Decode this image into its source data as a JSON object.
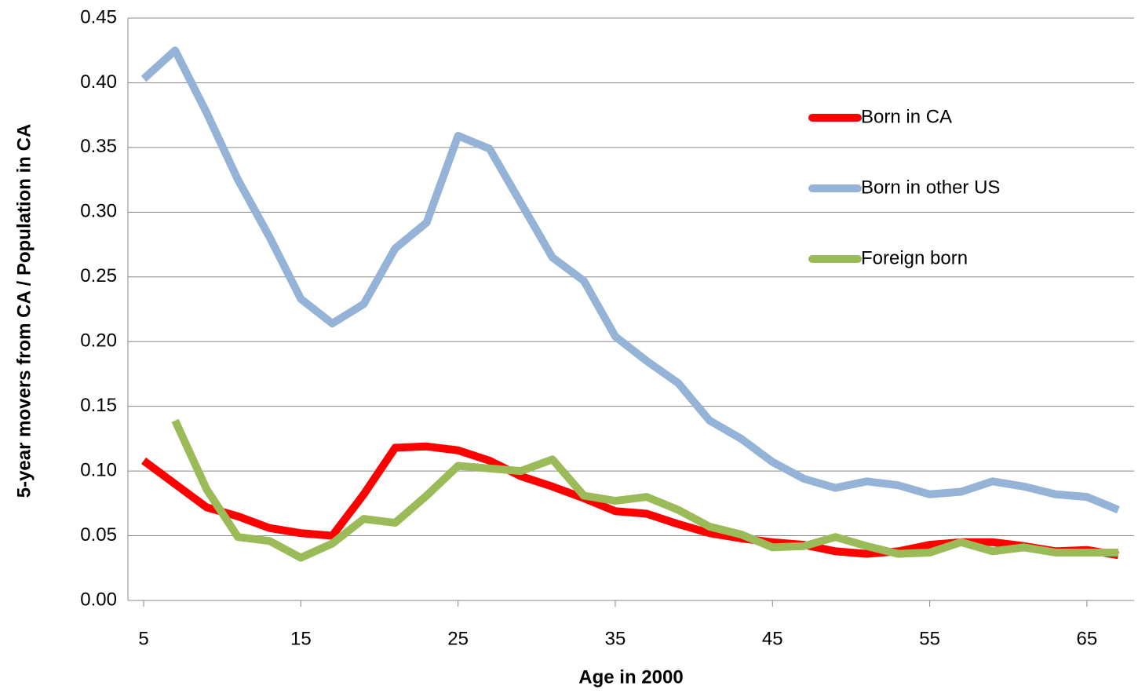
{
  "chart_data": {
    "type": "line",
    "x_label": "Age in 2000",
    "y_label": "5-year movers from CA / Population in CA",
    "x": [
      5,
      7,
      9,
      11,
      13,
      15,
      17,
      19,
      21,
      23,
      25,
      27,
      29,
      31,
      33,
      35,
      37,
      39,
      41,
      43,
      45,
      47,
      49,
      51,
      53,
      55,
      57,
      59,
      61,
      63,
      65,
      67
    ],
    "xlim": [
      4,
      68
    ],
    "xticks": [
      5,
      15,
      25,
      35,
      45,
      55,
      65
    ],
    "ylim": [
      0,
      0.45
    ],
    "yticks": [
      {
        "value": 0,
        "label": "0.00"
      },
      {
        "value": 0.05,
        "label": "0.05"
      },
      {
        "value": 0.1,
        "label": "0.10"
      },
      {
        "value": 0.15,
        "label": "0.15"
      },
      {
        "value": 0.2,
        "label": "0.20"
      },
      {
        "value": 0.25,
        "label": "0.25"
      },
      {
        "value": 0.3,
        "label": "0.30"
      },
      {
        "value": 0.35,
        "label": "0.35"
      },
      {
        "value": 0.4,
        "label": "0.40"
      },
      {
        "value": 0.45,
        "label": "0.45"
      }
    ],
    "grid": true,
    "legend": "right",
    "series": [
      {
        "name": "Born in CA",
        "color": "#ff0000",
        "values": [
          0.108,
          0.09,
          0.072,
          0.065,
          0.056,
          0.052,
          0.05,
          0.082,
          0.118,
          0.119,
          0.116,
          0.108,
          0.096,
          0.088,
          0.079,
          0.069,
          0.067,
          0.059,
          0.052,
          0.048,
          0.045,
          0.043,
          0.038,
          0.036,
          0.038,
          0.043,
          0.045,
          0.045,
          0.042,
          0.038,
          0.039,
          0.035
        ]
      },
      {
        "name": "Born in other US",
        "color": "#95b3d7",
        "values": [
          0.403,
          0.425,
          0.377,
          0.325,
          0.281,
          0.233,
          0.214,
          0.229,
          0.272,
          0.292,
          0.359,
          0.349,
          0.307,
          0.265,
          0.247,
          0.204,
          0.185,
          0.168,
          0.139,
          0.125,
          0.107,
          0.094,
          0.087,
          0.092,
          0.089,
          0.082,
          0.084,
          0.092,
          0.088,
          0.082,
          0.08,
          0.07
        ]
      },
      {
        "name": "Foreign born",
        "color": "#9bbb59",
        "values": [
          null,
          0.139,
          0.086,
          0.049,
          0.046,
          0.033,
          0.044,
          0.063,
          0.06,
          0.081,
          0.104,
          0.102,
          0.1,
          0.109,
          0.081,
          0.077,
          0.08,
          0.07,
          0.057,
          0.051,
          0.041,
          0.042,
          0.049,
          0.042,
          0.036,
          0.037,
          0.045,
          0.038,
          0.041,
          0.037,
          0.037,
          0.037
        ]
      }
    ]
  }
}
